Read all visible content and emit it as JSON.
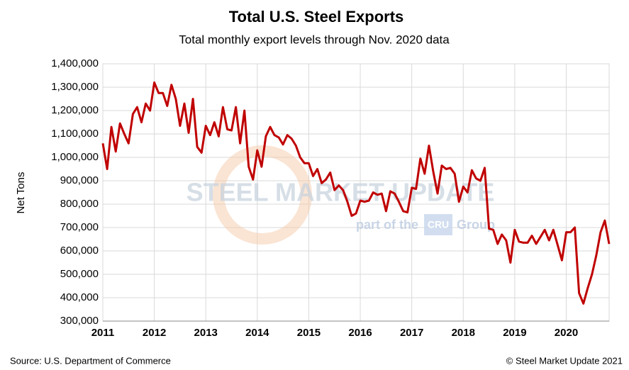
{
  "chart_data": {
    "type": "line",
    "title": "Total U.S. Steel Exports",
    "subtitle": "Total monthly export levels through Nov. 2020 data",
    "y_label": "Net Tons",
    "source": "Source: U.S. Department of Commerce",
    "copyright": "© Steel Market Update 2021",
    "watermark": {
      "brand": "STEEL MARKET UPDATE",
      "tagline": "part of the",
      "logo": "CRU",
      "group": "Group"
    },
    "color": "#c00000",
    "grid": true,
    "categories": [
      "2011",
      null,
      null,
      null,
      null,
      null,
      null,
      null,
      null,
      null,
      null,
      null,
      "2012",
      null,
      null,
      null,
      null,
      null,
      null,
      null,
      null,
      null,
      null,
      null,
      "2013",
      null,
      null,
      null,
      null,
      null,
      null,
      null,
      null,
      null,
      null,
      null,
      "2014",
      null,
      null,
      null,
      null,
      null,
      null,
      null,
      null,
      null,
      null,
      null,
      "2015",
      null,
      null,
      null,
      null,
      null,
      null,
      null,
      null,
      null,
      null,
      null,
      "2016",
      null,
      null,
      null,
      null,
      null,
      null,
      null,
      null,
      null,
      null,
      null,
      "2017",
      null,
      null,
      null,
      null,
      null,
      null,
      null,
      null,
      null,
      null,
      null,
      "2018",
      null,
      null,
      null,
      null,
      null,
      null,
      null,
      null,
      null,
      null,
      null,
      "2019",
      null,
      null,
      null,
      null,
      null,
      null,
      null,
      null,
      null,
      null,
      null,
      "2020",
      null,
      null,
      null,
      null,
      null,
      null,
      null,
      null,
      null,
      null
    ],
    "values": [
      1060000,
      950000,
      1130000,
      1025000,
      1145000,
      1100000,
      1060000,
      1185000,
      1215000,
      1150000,
      1230000,
      1200000,
      1320000,
      1275000,
      1275000,
      1220000,
      1310000,
      1250000,
      1135000,
      1230000,
      1105000,
      1250000,
      1045000,
      1020000,
      1135000,
      1095000,
      1150000,
      1090000,
      1215000,
      1120000,
      1115000,
      1215000,
      1060000,
      1200000,
      960000,
      905000,
      1030000,
      960000,
      1090000,
      1130000,
      1095000,
      1085000,
      1055000,
      1095000,
      1080000,
      1050000,
      1000000,
      975000,
      975000,
      920000,
      950000,
      890000,
      905000,
      935000,
      860000,
      880000,
      860000,
      810000,
      750000,
      760000,
      815000,
      810000,
      815000,
      850000,
      840000,
      845000,
      770000,
      855000,
      845000,
      810000,
      770000,
      765000,
      870000,
      865000,
      995000,
      930000,
      1050000,
      940000,
      845000,
      965000,
      950000,
      955000,
      930000,
      810000,
      875000,
      850000,
      945000,
      910000,
      900000,
      955000,
      695000,
      690000,
      630000,
      670000,
      645000,
      550000,
      690000,
      640000,
      635000,
      635000,
      665000,
      630000,
      660000,
      690000,
      645000,
      690000,
      625000,
      560000,
      680000,
      680000,
      700000,
      420000,
      375000,
      440000,
      500000,
      580000,
      680000,
      730000,
      630000
    ],
    "ylim": [
      300000,
      1400000
    ],
    "yticks": [
      {
        "value": 300000,
        "label": "300,000"
      },
      {
        "value": 400000,
        "label": "400,000"
      },
      {
        "value": 500000,
        "label": "500,000"
      },
      {
        "value": 600000,
        "label": "600,000"
      },
      {
        "value": 700000,
        "label": "700,000"
      },
      {
        "value": 800000,
        "label": "800,000"
      },
      {
        "value": 900000,
        "label": "900,000"
      },
      {
        "value": 1000000,
        "label": "1,000,000"
      },
      {
        "value": 1100000,
        "label": "1,100,000"
      },
      {
        "value": 1200000,
        "label": "1,200,000"
      },
      {
        "value": 1300000,
        "label": "1,300,000"
      },
      {
        "value": 1400000,
        "label": "1,400,000"
      }
    ]
  }
}
